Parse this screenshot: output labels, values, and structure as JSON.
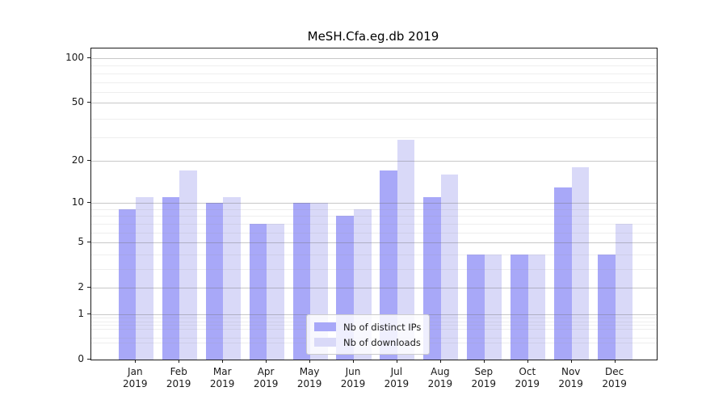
{
  "figure": {
    "background": "#ffffff"
  },
  "chart_data": {
    "type": "bar",
    "title": "MeSH.Cfa.eg.db 2019",
    "categories": [
      "Jan 2019",
      "Feb 2019",
      "Mar 2019",
      "Apr 2019",
      "May 2019",
      "Jun 2019",
      "Jul 2019",
      "Aug 2019",
      "Sep 2019",
      "Oct 2019",
      "Nov 2019",
      "Dec 2019"
    ],
    "x_tick_months": [
      "Jan",
      "Feb",
      "Mar",
      "Apr",
      "May",
      "Jun",
      "Jul",
      "Aug",
      "Sep",
      "Oct",
      "Nov",
      "Dec"
    ],
    "x_tick_year": "2019",
    "series": [
      {
        "name": "Nb of distinct IPs",
        "color": "#a8a8f8",
        "values": [
          9,
          11,
          10,
          7,
          10,
          8,
          17,
          11,
          4,
          4,
          13,
          4
        ]
      },
      {
        "name": "Nb of downloads",
        "color": "#d9d9f8",
        "values": [
          11,
          17,
          11,
          7,
          10,
          9,
          28,
          16,
          4,
          4,
          18,
          7
        ]
      }
    ],
    "yscale": "log1p",
    "ylim": [
      0,
      116
    ],
    "yticks": [
      100,
      50,
      20,
      10,
      5,
      2,
      1,
      0
    ],
    "ytick_labels": [
      "100",
      "50",
      "20",
      "10",
      "5",
      "2",
      "1",
      "0"
    ],
    "minor_yticks": [
      0.3,
      0.4,
      0.6,
      0.7,
      0.8,
      0.9,
      3,
      4,
      6,
      7,
      8,
      9,
      29,
      39,
      59,
      69,
      79,
      89
    ],
    "grid": true,
    "legend_position": "inside lower-center",
    "colors": {
      "major_grid": "#6e6e6e",
      "minor_grid": "#969696",
      "spine": "#1a1a1a",
      "text": "#1a1a1a"
    }
  }
}
